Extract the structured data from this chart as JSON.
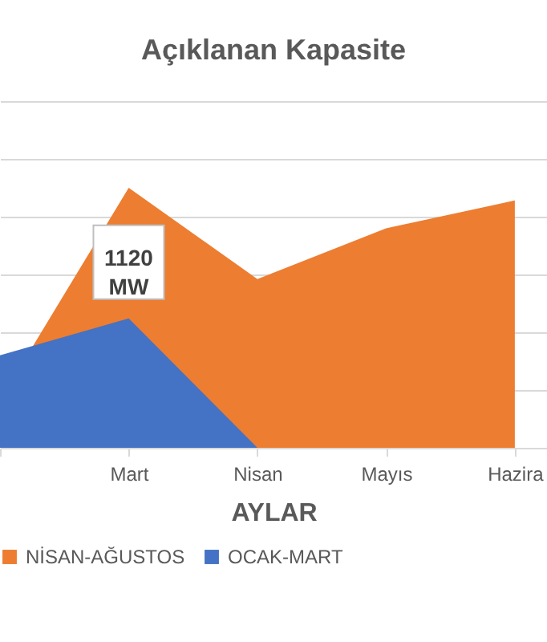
{
  "chart_data": {
    "type": "area",
    "title": "Açıklanan Kapasite",
    "xlabel": "AYLAR",
    "categories": [
      null,
      "Mart",
      "Nisan",
      "Mayıs",
      "Hazira"
    ],
    "series": [
      {
        "name": "NİSAN-AĞUSTOS",
        "color": "#ed7d31",
        "values": [
          410,
          2250,
          1460,
          1900,
          2140
        ]
      },
      {
        "name": "OCAK-MART",
        "color": "#4472c4",
        "values": [
          800,
          1120,
          0,
          null,
          null
        ],
        "value_labels": [
          null,
          "1120 MW",
          null,
          null,
          null
        ]
      }
    ],
    "ylim": [
      0,
      3000
    ],
    "yticks": [
      {
        "value": 0,
        "label": null
      },
      {
        "value": 500,
        "label": null
      },
      {
        "value": 1000,
        "label": null
      },
      {
        "value": 1500,
        "label": null
      },
      {
        "value": 2000,
        "label": null
      },
      {
        "value": 2500,
        "label": null
      },
      {
        "value": 3000,
        "label": null
      }
    ],
    "grid": "y",
    "tick_labels": "x",
    "legend": "bottom"
  }
}
